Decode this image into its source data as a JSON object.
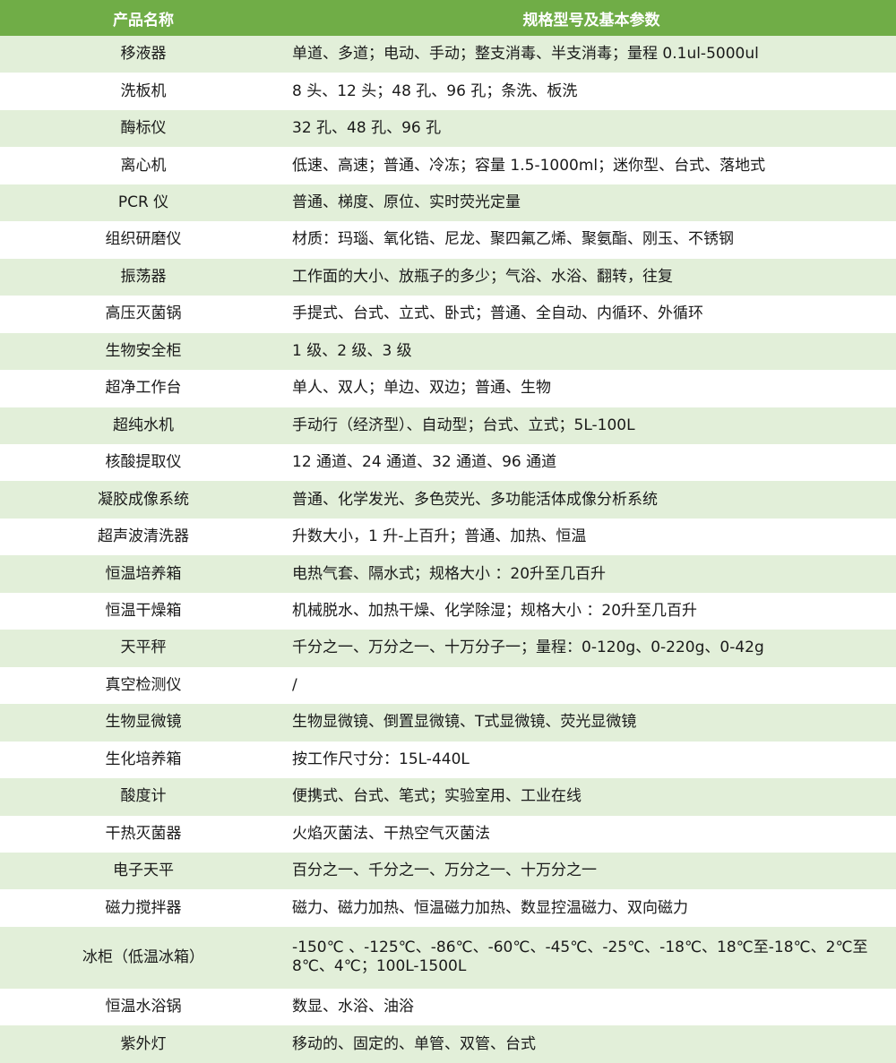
{
  "header": {
    "col_name": "产品名称",
    "col_spec": "规格型号及基本参数"
  },
  "colors": {
    "header_bg": "#70ad47",
    "row_alt_bg": "#e2efd9",
    "row_bg": "#ffffff"
  },
  "rows": [
    {
      "name": "移液器",
      "spec": "单道、多道；电动、手动；整支消毒、半支消毒；量程 0.1ul-5000ul"
    },
    {
      "name": "洗板机",
      "spec": "8 头、12 头；48 孔、96 孔；条洗、板洗"
    },
    {
      "name": "酶标仪",
      "spec": "32 孔、48 孔、96 孔"
    },
    {
      "name": "离心机",
      "spec": "低速、高速；普通、冷冻；容量 1.5-1000ml；迷你型、台式、落地式"
    },
    {
      "name": "PCR 仪",
      "spec": "普通、梯度、原位、实时荧光定量"
    },
    {
      "name": "组织研磨仪",
      "spec": "材质：玛瑙、氧化锆、尼龙、聚四氟乙烯、聚氨酯、刚玉、不锈钢"
    },
    {
      "name": "振荡器",
      "spec": "工作面的大小、放瓶子的多少；气浴、水浴、翻转，往复"
    },
    {
      "name": "高压灭菌锅",
      "spec": "手提式、台式、立式、卧式；普通、全自动、内循环、外循环"
    },
    {
      "name": "生物安全柜",
      "spec": "1 级、2 级、3 级"
    },
    {
      "name": "超净工作台",
      "spec": "单人、双人；单边、双边；普通、生物"
    },
    {
      "name": "超纯水机",
      "spec": "手动行（经济型）、自动型；台式、立式；5L-100L"
    },
    {
      "name": "核酸提取仪",
      "spec": "12 通道、24 通道、32 通道、96 通道"
    },
    {
      "name": "凝胶成像系统",
      "spec": "普通、化学发光、多色荧光、多功能活体成像分析系统"
    },
    {
      "name": "超声波清洗器",
      "spec": "升数大小，1 升-上百升；普通、加热、恒温"
    },
    {
      "name": "恒温培养箱",
      "spec": "电热气套、隔水式；规格大小 ：20升至几百升"
    },
    {
      "name": "恒温干燥箱",
      "spec": "机械脱水、加热干燥、化学除湿；规格大小 ：20升至几百升"
    },
    {
      "name": "天平秤",
      "spec": "千分之一、万分之一、十万分子一；量程：0-120g、0-220g、0-42g"
    },
    {
      "name": "真空检测仪",
      "spec": "/"
    },
    {
      "name": "生物显微镜",
      "spec": "生物显微镜、倒置显微镜、T式显微镜、荧光显微镜"
    },
    {
      "name": "生化培养箱",
      "spec": "按工作尺寸分：15L-440L"
    },
    {
      "name": "酸度计",
      "spec": "便携式、台式、笔式；实验室用、工业在线"
    },
    {
      "name": "干热灭菌器",
      "spec": "火焰灭菌法、干热空气灭菌法"
    },
    {
      "name": "电子天平",
      "spec": "百分之一、千分之一、万分之一、十万分之一"
    },
    {
      "name": "磁力搅拌器",
      "spec": "磁力、磁力加热、恒温磁力加热、数显控温磁力、双向磁力"
    },
    {
      "name": "冰柜（低温冰箱）",
      "spec": "-150℃ 、-125℃、-86℃、-60℃、-45℃、-25℃、-18℃、18℃至-18℃、2℃至8℃、4℃；100L-1500L"
    },
    {
      "name": "恒温水浴锅",
      "spec": "数显、水浴、油浴"
    },
    {
      "name": "紫外灯",
      "spec": "移动的、固定的、单管、双管、台式"
    }
  ]
}
